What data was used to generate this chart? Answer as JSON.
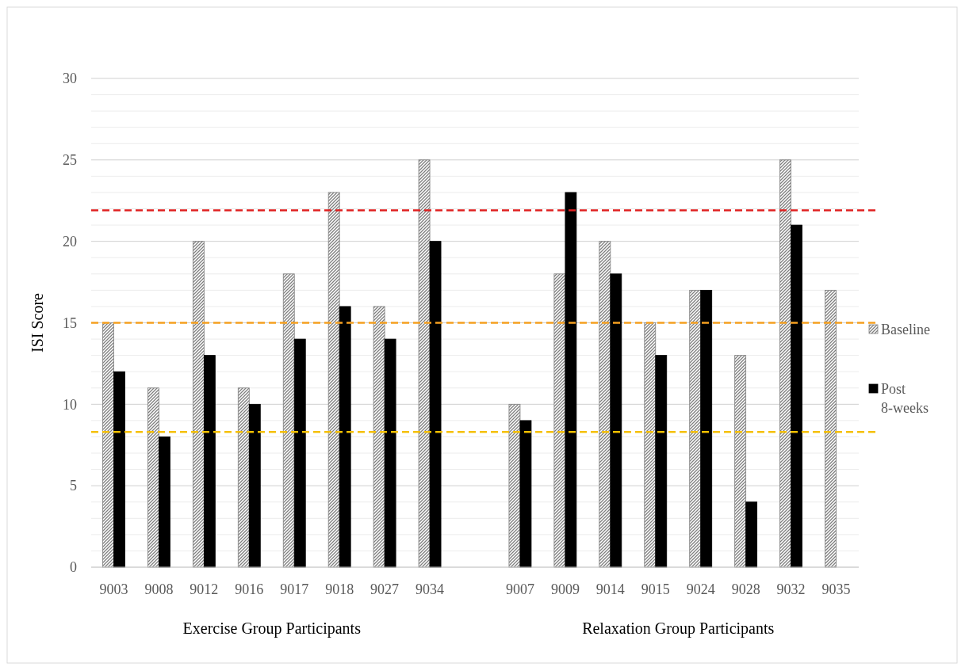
{
  "chart_data": {
    "type": "bar",
    "ylabel": "ISI Score",
    "categories": [
      "9003",
      "9008",
      "9012",
      "9016",
      "9017",
      "9018",
      "9027",
      "9034",
      null,
      "9007",
      "9009",
      "9014",
      "9015",
      "9024",
      "9028",
      "9032",
      "9035"
    ],
    "series": [
      {
        "name": "Baseline",
        "color": "#7f7f7f",
        "values": [
          15,
          11,
          20,
          11,
          18,
          23,
          16,
          25,
          null,
          10,
          18,
          20,
          15,
          17,
          13,
          25,
          17
        ]
      },
      {
        "name": "Post 8-weeks",
        "color": "#000000",
        "values": [
          12,
          8,
          13,
          10,
          14,
          16,
          14,
          20,
          null,
          9,
          23,
          18,
          13,
          17,
          4,
          21,
          null
        ]
      }
    ],
    "ylim": [
      0,
      30
    ],
    "yticks": [
      0,
      {
        "value": 1,
        "label": null
      },
      {
        "value": 2,
        "label": null
      },
      {
        "value": 3,
        "label": null
      },
      {
        "value": 4,
        "label": null
      },
      5,
      {
        "value": 6,
        "label": null
      },
      {
        "value": 7,
        "label": null
      },
      {
        "value": 8,
        "label": null
      },
      {
        "value": 9,
        "label": null
      },
      10,
      {
        "value": 11,
        "label": null
      },
      {
        "value": 12,
        "label": null
      },
      {
        "value": 13,
        "label": null
      },
      {
        "value": 14,
        "label": null
      },
      15,
      {
        "value": 16,
        "label": null
      },
      {
        "value": 17,
        "label": null
      },
      {
        "value": 18,
        "label": null
      },
      {
        "value": 19,
        "label": null
      },
      20,
      {
        "value": 21,
        "label": null
      },
      {
        "value": 22,
        "label": null
      },
      {
        "value": 23,
        "label": null
      },
      {
        "value": 24,
        "label": null
      },
      25,
      {
        "value": 26,
        "label": null
      },
      {
        "value": 27,
        "label": null
      },
      {
        "value": 28,
        "label": null
      },
      {
        "value": 29,
        "label": null
      },
      30
    ],
    "grid": "y",
    "legend": "right",
    "ref_lines": [
      {
        "axis": "y",
        "value": 21.9,
        "color": "#e02020",
        "line_style": "dashed"
      },
      {
        "axis": "y",
        "value": 15,
        "color": "#f5a020",
        "line_style": "dashed"
      },
      {
        "axis": "y",
        "value": 8.3,
        "color": "#f5c000",
        "line_style": "dashed"
      }
    ],
    "annotations": [
      "Exercise Group Participants",
      "Relaxation Group Participants"
    ]
  }
}
